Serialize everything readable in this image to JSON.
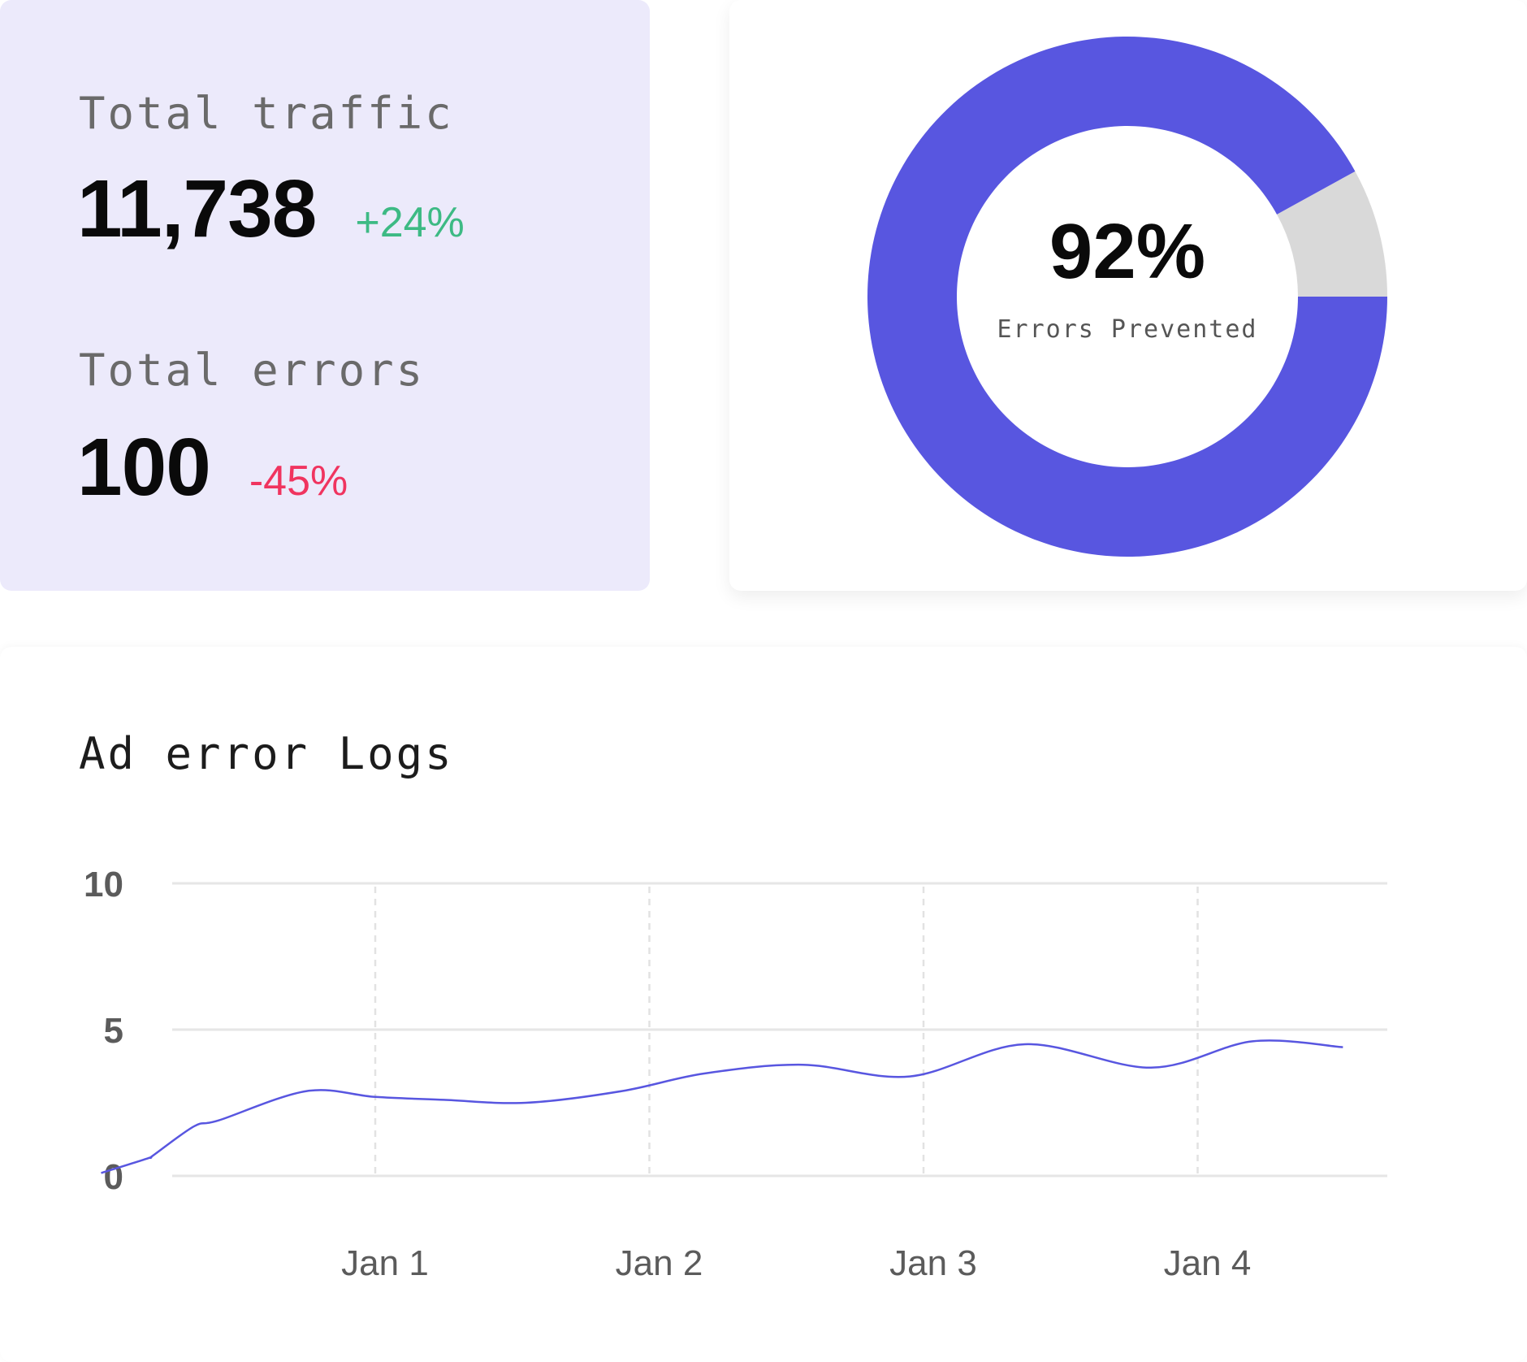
{
  "stats": {
    "traffic": {
      "label": "Total traffic",
      "value": "11,738",
      "delta": "+24%",
      "delta_color": "#3dba84"
    },
    "errors": {
      "label": "Total errors",
      "value": "100",
      "delta": "-45%",
      "delta_color": "#f0345f"
    },
    "card_color": "#eceafb"
  },
  "donut": {
    "value_label": "92%",
    "caption": "Errors Prevented",
    "percent": 92,
    "fill_color": "#5856e0",
    "rest_color": "#d9d9d9"
  },
  "chart": {
    "title": "Ad error Logs",
    "line_color": "#5856e0"
  },
  "chart_data": {
    "type": "line",
    "title": "Ad error Logs",
    "xlabel": "",
    "ylabel": "",
    "ylim": [
      0,
      10
    ],
    "yticks": [
      "0",
      "5",
      "10"
    ],
    "xticks": [
      "Jan 1",
      "Jan 2",
      "Jan 3",
      "Jan 4"
    ],
    "grid": true,
    "series": [
      {
        "name": "",
        "x": [
          0.0,
          0.17,
          0.19,
          0.34,
          0.43,
          0.75,
          1.0,
          1.25,
          1.55,
          1.9,
          2.2,
          2.56,
          2.95,
          3.37,
          3.83,
          4.2,
          4.53
        ],
        "values": [
          0.1,
          0.6,
          0.7,
          1.7,
          1.9,
          2.9,
          2.7,
          2.6,
          2.5,
          2.9,
          3.5,
          3.8,
          3.4,
          4.5,
          3.7,
          4.6,
          4.4
        ]
      }
    ]
  }
}
